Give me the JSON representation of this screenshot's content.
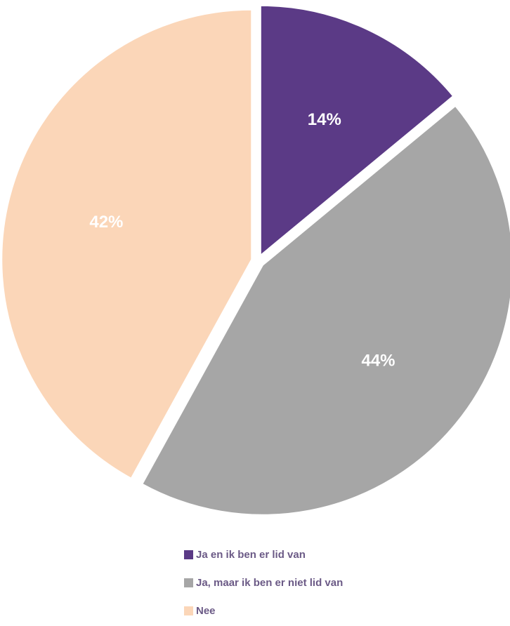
{
  "chart_data": {
    "type": "pie",
    "categories": [
      "Ja en ik ben er lid van",
      "Ja, maar ik ben er niet lid van",
      "Nee"
    ],
    "values": [
      14,
      44,
      42
    ],
    "labels": [
      "14%",
      "44%",
      "42%"
    ],
    "colors": [
      "#5b3a86",
      "#a6a6a6",
      "#fbd6b8"
    ],
    "exploded": true,
    "legend": "bottom"
  }
}
